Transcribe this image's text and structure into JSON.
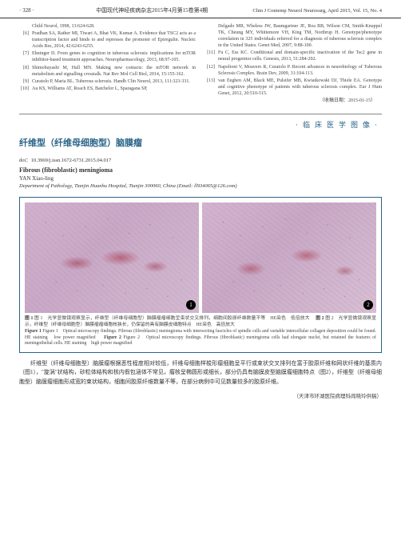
{
  "header": {
    "page_num": "· 328 ·",
    "cn": "中国现代神经疾病杂志2015年4月第15卷第4期",
    "en": "Chin J Contemp Neurol Neurosurg, April 2015, Vol. 15, No. 4"
  },
  "refs_left": [
    {
      "n": "",
      "t": "Child Neurol, 1998, 13:624-628."
    },
    {
      "n": "[6]",
      "t": "Pradhan SA, Rather MI, Tiwari A, Bhat VK, Kumar A. Evidence that TSC2 acts as a transcription factor and binds to and represses the promoter of Epiregulin. Nucleic Acids Res, 2014, 42:6243-6255."
    },
    {
      "n": "[7]",
      "t": "Ehninger D. From genes to cognition in tuberous sclerosis: implications for mTOR inhibitor-based treatment approaches. Neuropharmacology, 2013, 68:97-105."
    },
    {
      "n": "[8]",
      "t": "Shimobayashi M, Hall MN. Making new contacts: the mTOR network in metabolism and signalling crosstalk. Nat Rev Mol Cell Biol, 2014, 15:155-162."
    },
    {
      "n": "[9]",
      "t": "Curatolo P, Maria BL. Tuberous sclerosis. Handb Clin Neurol, 2013, 111:323-331."
    },
    {
      "n": "[10]",
      "t": "Au KS, Williams AT, Roach ES, Batchelor L, Sparagana SP,"
    }
  ],
  "refs_right": [
    {
      "n": "",
      "t": "Delgado MR, Wheless JW, Baumgartner JE, Roa BB, Wilson CM, Smith-Knuppel TK, Cheung MY, Whittemore VH, King TM, Northrup H. Genotype/phenotype correlation in 325 individuals referred for a diagnosis of tuberous sclerosis complex in the United States. Genet Med, 2007, 9:88-100."
    },
    {
      "n": "[11]",
      "t": "Fu C, Ess KC. Conditional and domain-specific inactivation of the Tsc2 gene in neural progenitor cells. Genesis, 2013, 51:284-292."
    },
    {
      "n": "[12]",
      "t": "Napolioni V, Moavero R, Curatolo P. Recent advances in neurobiology of Tuberous Sclerosis Complex. Brain Dev, 2009, 31:104-113."
    },
    {
      "n": "[13]",
      "t": "van Eeghen AM, Black ME, Pulsifer MB, Kwiatkowski DJ, Thiele EA. Genotype and cognitive phenotype of patients with tuberous sclerosis complex. Eur J Hum Genet, 2012, 20:510-515."
    }
  ],
  "receipt_date": "（收稿日期：2015-01-15）",
  "section_label": "·临床医学图像·",
  "article": {
    "title_cn": "纤维型（纤维母细胞型）脑膜瘤",
    "doi": "doi：10.3969/j.issn.1672-6731.2015.04.017",
    "title_en": "Fibrous (fibroblastic) meningioma",
    "author": "YAN Xiao-ling",
    "affil": "Department of Pathology, Tianjin Huanhu Hospital, Tianjin 300060, China (Email: ll934065@126.com)"
  },
  "caption": {
    "cn1": "图 1　光学显微镜观察显示，纤维型（纤维母细胞型）脑膜瘤瘤细胞呈束状交叉排列，细胞间胶原纤维数量不等　HE染色　低倍放大　",
    "cn2": "图 2　光学显微镜观察显示，纤维型（纤维母细胞型）脑膜瘤瘤细胞核狭长，仍保留的具有脑膜皮细胞特点　HE染色　高倍放大",
    "en1": "Figure 1　Optical microscopy findings. Fibrous (fibroblastic) meningioma with intersecting fascicles of spindle cells and variable intercellular collagen deposition could be found. HE staining　low power magnified　",
    "en2": "Figure 2　Optical microscopy findings. Fibrous (fibroblastic) meningioma cells had elongate nuclei, but retained the features of meningothelial cells. HE staining　high power magnified"
  },
  "body": "纤维型（纤维母细胞型）脑膜瘤根据恶性程度相对较低，纤维母细胞样梭形瘤细胞呈平行或束状交叉排列在富于胶原纤维和网状纤维的基质内（图1），\"旋涡\"状结构，砂粒体结构和核内假包涵体不常见，瘤核呈椭圆形或细长，部分仍具有脑膜皮型脑膜瘤细胞特点（图2），纤维型（纤维母细胞型）脑膜瘤细胞形成宽的束状结构，细胞间胶原纤维数量不等，在部分病例中可见数量较多的胶原纤维。",
  "footer": "（天津市环湖医院病理科阎晓玲供稿）"
}
